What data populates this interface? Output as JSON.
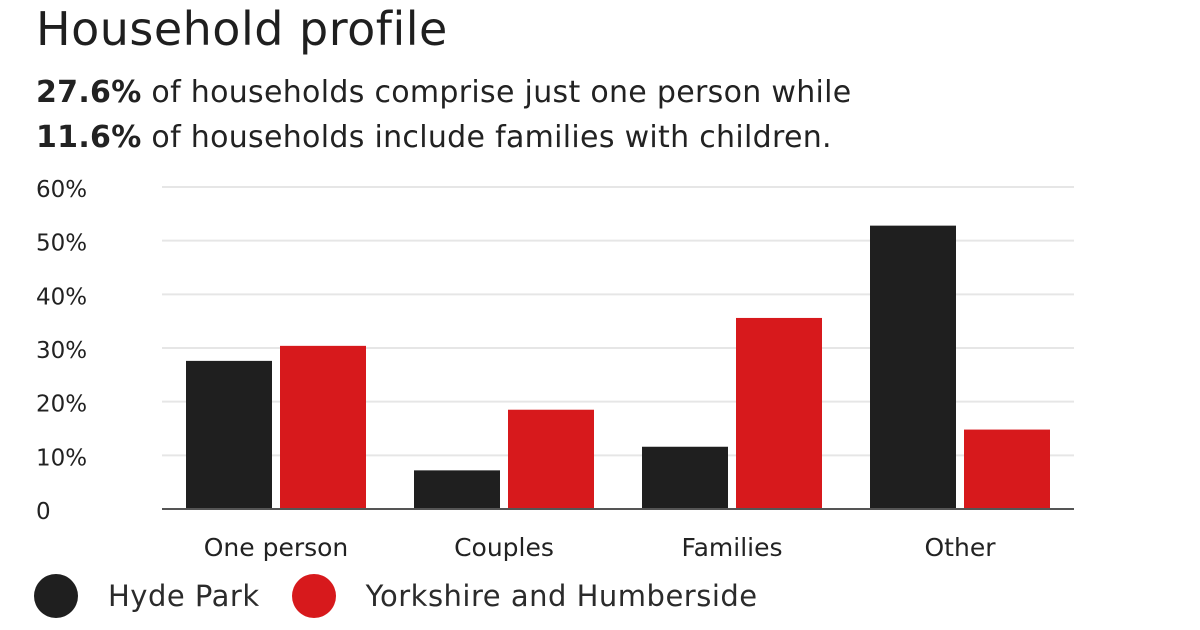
{
  "colors": {
    "hyde_park": "#1f1f1f",
    "yorkshire": "#d7191c",
    "grid": "#e6e6e6",
    "axis": "#555555",
    "text": "#222222"
  },
  "chart_data": {
    "type": "bar",
    "title": "Household profile",
    "subtitle_lines": [
      {
        "value": "27.6%",
        "text": "of households comprise just one person while"
      },
      {
        "value": "11.6%",
        "text": "of households include families with children."
      }
    ],
    "categories": [
      "One person",
      "Couples",
      "Families",
      "Other"
    ],
    "series": [
      {
        "name": "Hyde Park",
        "values": [
          27.6,
          7.2,
          11.6,
          52.8
        ]
      },
      {
        "name": "Yorkshire and Humberside",
        "values": [
          30.4,
          18.5,
          35.6,
          14.8
        ]
      }
    ],
    "yticks": [
      0,
      10,
      20,
      30,
      40,
      50,
      60
    ],
    "ytick_labels": [
      "0",
      "10%",
      "20%",
      "30%",
      "40%",
      "50%",
      "60%"
    ],
    "ylim": [
      0,
      60
    ],
    "grid": true,
    "legend_position": "bottom-left"
  }
}
